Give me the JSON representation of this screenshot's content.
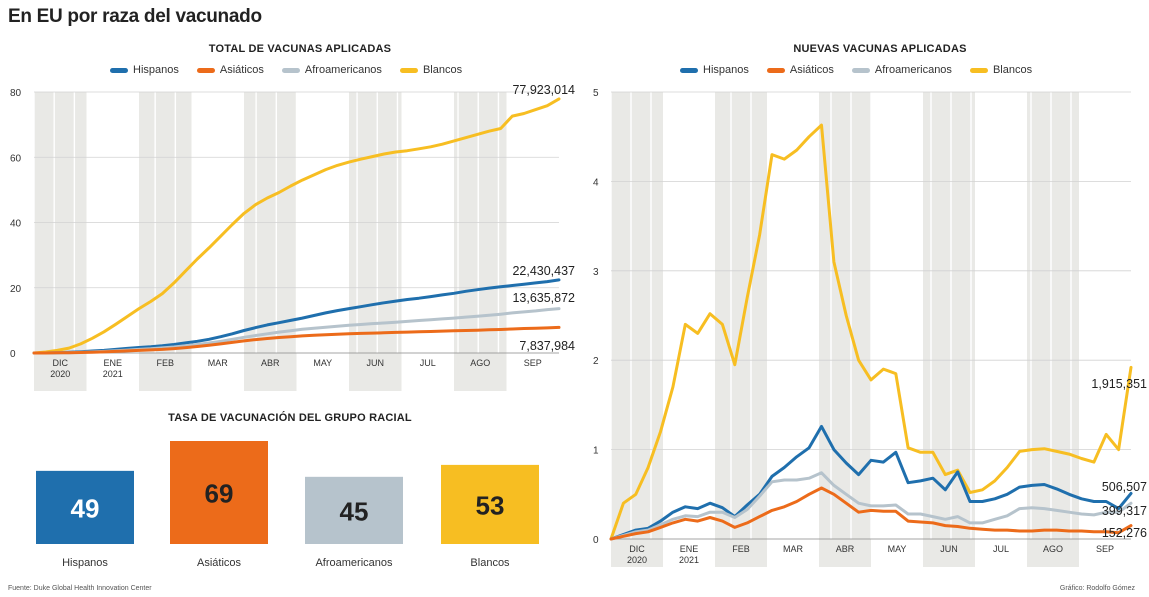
{
  "title": "En EU por raza del vacunado",
  "source": "Fuente: Duke Global Health Innovation Center",
  "credit": "Gráfico: Rodolfo Gómez",
  "legend": [
    {
      "name": "Hispanos",
      "color": "#1f6fad"
    },
    {
      "name": "Asiáticos",
      "color": "#ec6b1a"
    },
    {
      "name": "Afroamericanos",
      "color": "#b6c3cc"
    },
    {
      "name": "Blancos",
      "color": "#f7be22"
    }
  ],
  "chart_data": [
    {
      "type": "line",
      "title": "TOTAL DE VACUNAS APLICADAS",
      "xlabel": "",
      "ylabel": "",
      "ylim": [
        0,
        80
      ],
      "yticks": [
        0,
        20,
        40,
        60,
        80
      ],
      "xlim": [
        0,
        38
      ],
      "month_labels": [
        {
          "line1": "DIC",
          "line2": "2020",
          "x": 1.0,
          "shaded": true
        },
        {
          "line1": "ENE",
          "line2": "2021",
          "x": 5.5,
          "shaded": false
        },
        {
          "line1": "FEB",
          "line2": "",
          "x": 10.0,
          "shaded": true
        },
        {
          "line1": "MAR",
          "line2": "",
          "x": 14.5,
          "shaded": false
        },
        {
          "line1": "ABR",
          "line2": "",
          "x": 19.0,
          "shaded": true
        },
        {
          "line1": "MAY",
          "line2": "",
          "x": 23.5,
          "shaded": false
        },
        {
          "line1": "JUN",
          "line2": "",
          "x": 28.0,
          "shaded": true
        },
        {
          "line1": "JUL",
          "line2": "",
          "x": 32.5,
          "shaded": false
        },
        {
          "line1": "AGO",
          "line2": "",
          "x": 37.0,
          "shaded": true
        },
        {
          "line1": "SEP",
          "line2": "",
          "x": 41.5,
          "shaded": false
        }
      ],
      "series": [
        {
          "name": "Blancos",
          "color": "#f7be22",
          "end_label": "77,923,014",
          "values": [
            0,
            0.3,
            0.8,
            1.5,
            2.8,
            4.5,
            6.5,
            8.8,
            11.2,
            13.6,
            15.8,
            18.2,
            21.5,
            25.2,
            28.8,
            32.2,
            35.8,
            39.4,
            42.8,
            45.5,
            47.5,
            49.2,
            51.2,
            53,
            54.6,
            56.2,
            57.5,
            58.5,
            59.4,
            60.2,
            61,
            61.6,
            62,
            62.6,
            63.2,
            64,
            65,
            66,
            67,
            68,
            68.8,
            72.6,
            73.4,
            74.6,
            75.8,
            77.9
          ]
        },
        {
          "name": "Hispanos",
          "color": "#1f6fad",
          "end_label": "22,430,437",
          "values": [
            0,
            0,
            0.1,
            0.2,
            0.4,
            0.6,
            0.8,
            1.1,
            1.4,
            1.7,
            1.9,
            2.2,
            2.6,
            3.1,
            3.6,
            4.2,
            5,
            5.9,
            6.9,
            7.8,
            8.6,
            9.3,
            10,
            10.7,
            11.5,
            12.3,
            13,
            13.6,
            14.2,
            14.8,
            15.4,
            15.9,
            16.4,
            16.8,
            17.3,
            17.8,
            18.3,
            18.9,
            19.4,
            19.9,
            20.3,
            20.7,
            21.1,
            21.5,
            21.9,
            22.4
          ]
        },
        {
          "name": "Afroamericanos",
          "color": "#b6c3cc",
          "end_label": "13,635,872",
          "values": [
            0,
            0,
            0.05,
            0.1,
            0.2,
            0.35,
            0.5,
            0.7,
            0.9,
            1.1,
            1.3,
            1.55,
            1.85,
            2.2,
            2.6,
            3.05,
            3.6,
            4.2,
            4.8,
            5.35,
            5.9,
            6.4,
            6.85,
            7.25,
            7.6,
            7.9,
            8.2,
            8.5,
            8.75,
            9,
            9.2,
            9.45,
            9.7,
            9.95,
            10.2,
            10.45,
            10.7,
            11,
            11.25,
            11.55,
            11.9,
            12.3,
            12.6,
            12.9,
            13.3,
            13.6
          ]
        },
        {
          "name": "Asiáticos",
          "color": "#ec6b1a",
          "end_label": "7,837,984",
          "values": [
            0,
            0,
            0.05,
            0.1,
            0.15,
            0.25,
            0.35,
            0.5,
            0.65,
            0.8,
            0.95,
            1.1,
            1.35,
            1.65,
            2,
            2.35,
            2.8,
            3.25,
            3.7,
            4.1,
            4.45,
            4.75,
            5,
            5.25,
            5.45,
            5.6,
            5.75,
            5.9,
            6,
            6.1,
            6.2,
            6.3,
            6.4,
            6.5,
            6.6,
            6.7,
            6.8,
            6.9,
            7,
            7.1,
            7.2,
            7.35,
            7.5,
            7.6,
            7.7,
            7.84
          ]
        }
      ]
    },
    {
      "type": "bar",
      "title": "TASA DE VACUNACIÓN DEL GRUPO RACIAL",
      "categories": [
        "Hispanos",
        "Asiáticos",
        "Afroamericanos",
        "Blancos"
      ],
      "values": [
        49,
        69,
        45,
        53
      ],
      "colors": [
        "#1f6fad",
        "#ec6b1a",
        "#b6c3cc",
        "#f7be22"
      ],
      "label_colors": [
        "#ffffff",
        "#222222",
        "#222222",
        "#222222"
      ],
      "ylim": [
        0,
        69
      ]
    },
    {
      "type": "line",
      "title": "NUEVAS VACUNAS APLICADAS",
      "xlabel": "",
      "ylabel": "",
      "ylim": [
        0,
        5
      ],
      "yticks": [
        0,
        1,
        2,
        3,
        4,
        5
      ],
      "xlim": [
        0,
        38
      ],
      "month_labels": [
        {
          "line1": "DIC",
          "line2": "2020",
          "x": 1.0,
          "shaded": true
        },
        {
          "line1": "ENE",
          "line2": "2021",
          "x": 5.5,
          "shaded": false
        },
        {
          "line1": "FEB",
          "line2": "",
          "x": 10.0,
          "shaded": true
        },
        {
          "line1": "MAR",
          "line2": "",
          "x": 14.5,
          "shaded": false
        },
        {
          "line1": "ABR",
          "line2": "",
          "x": 19.0,
          "shaded": true
        },
        {
          "line1": "MAY",
          "line2": "",
          "x": 23.5,
          "shaded": false
        },
        {
          "line1": "JUN",
          "line2": "",
          "x": 28.0,
          "shaded": true
        },
        {
          "line1": "JUL",
          "line2": "",
          "x": 32.5,
          "shaded": false
        },
        {
          "line1": "AGO",
          "line2": "",
          "x": 37.0,
          "shaded": true
        },
        {
          "line1": "SEP",
          "line2": "",
          "x": 41.5,
          "shaded": false
        }
      ],
      "series": [
        {
          "name": "Blancos",
          "color": "#f7be22",
          "end_label": "1,915,351",
          "values": [
            0,
            0.4,
            0.5,
            0.8,
            1.2,
            1.7,
            2.4,
            2.3,
            2.52,
            2.4,
            1.95,
            2.7,
            3.4,
            4.3,
            4.25,
            4.35,
            4.5,
            4.63,
            3.1,
            2.5,
            2,
            1.78,
            1.9,
            1.85,
            1.02,
            0.97,
            0.97,
            0.72,
            0.77,
            0.52,
            0.55,
            0.65,
            0.8,
            0.98,
            1,
            1.01,
            0.98,
            0.95,
            0.9,
            0.86,
            1.17,
            1,
            1.92
          ]
        },
        {
          "name": "Hispanos",
          "color": "#1f6fad",
          "end_label": "506,507",
          "values": [
            0,
            0.05,
            0.1,
            0.12,
            0.2,
            0.3,
            0.36,
            0.34,
            0.4,
            0.35,
            0.25,
            0.38,
            0.5,
            0.7,
            0.8,
            0.92,
            1.02,
            1.26,
            1,
            0.85,
            0.72,
            0.88,
            0.86,
            0.97,
            0.63,
            0.65,
            0.68,
            0.55,
            0.75,
            0.42,
            0.42,
            0.45,
            0.5,
            0.58,
            0.6,
            0.61,
            0.56,
            0.5,
            0.45,
            0.42,
            0.42,
            0.34,
            0.51
          ]
        },
        {
          "name": "Afroamericanos",
          "color": "#b6c3cc",
          "end_label": "399,317",
          "values": [
            0,
            0.04,
            0.08,
            0.1,
            0.16,
            0.22,
            0.26,
            0.25,
            0.3,
            0.3,
            0.24,
            0.33,
            0.48,
            0.64,
            0.66,
            0.66,
            0.68,
            0.74,
            0.6,
            0.5,
            0.4,
            0.37,
            0.37,
            0.38,
            0.28,
            0.28,
            0.25,
            0.22,
            0.25,
            0.18,
            0.18,
            0.22,
            0.26,
            0.34,
            0.35,
            0.34,
            0.32,
            0.3,
            0.28,
            0.27,
            0.3,
            0.3,
            0.4
          ]
        },
        {
          "name": "Asiáticos",
          "color": "#ec6b1a",
          "end_label": "152,276",
          "values": [
            0,
            0.03,
            0.06,
            0.08,
            0.13,
            0.18,
            0.22,
            0.2,
            0.24,
            0.2,
            0.13,
            0.18,
            0.25,
            0.32,
            0.36,
            0.42,
            0.5,
            0.57,
            0.5,
            0.4,
            0.3,
            0.32,
            0.31,
            0.31,
            0.2,
            0.19,
            0.18,
            0.15,
            0.14,
            0.12,
            0.11,
            0.1,
            0.1,
            0.09,
            0.09,
            0.1,
            0.1,
            0.09,
            0.09,
            0.08,
            0.08,
            0.07,
            0.15
          ]
        }
      ]
    }
  ]
}
